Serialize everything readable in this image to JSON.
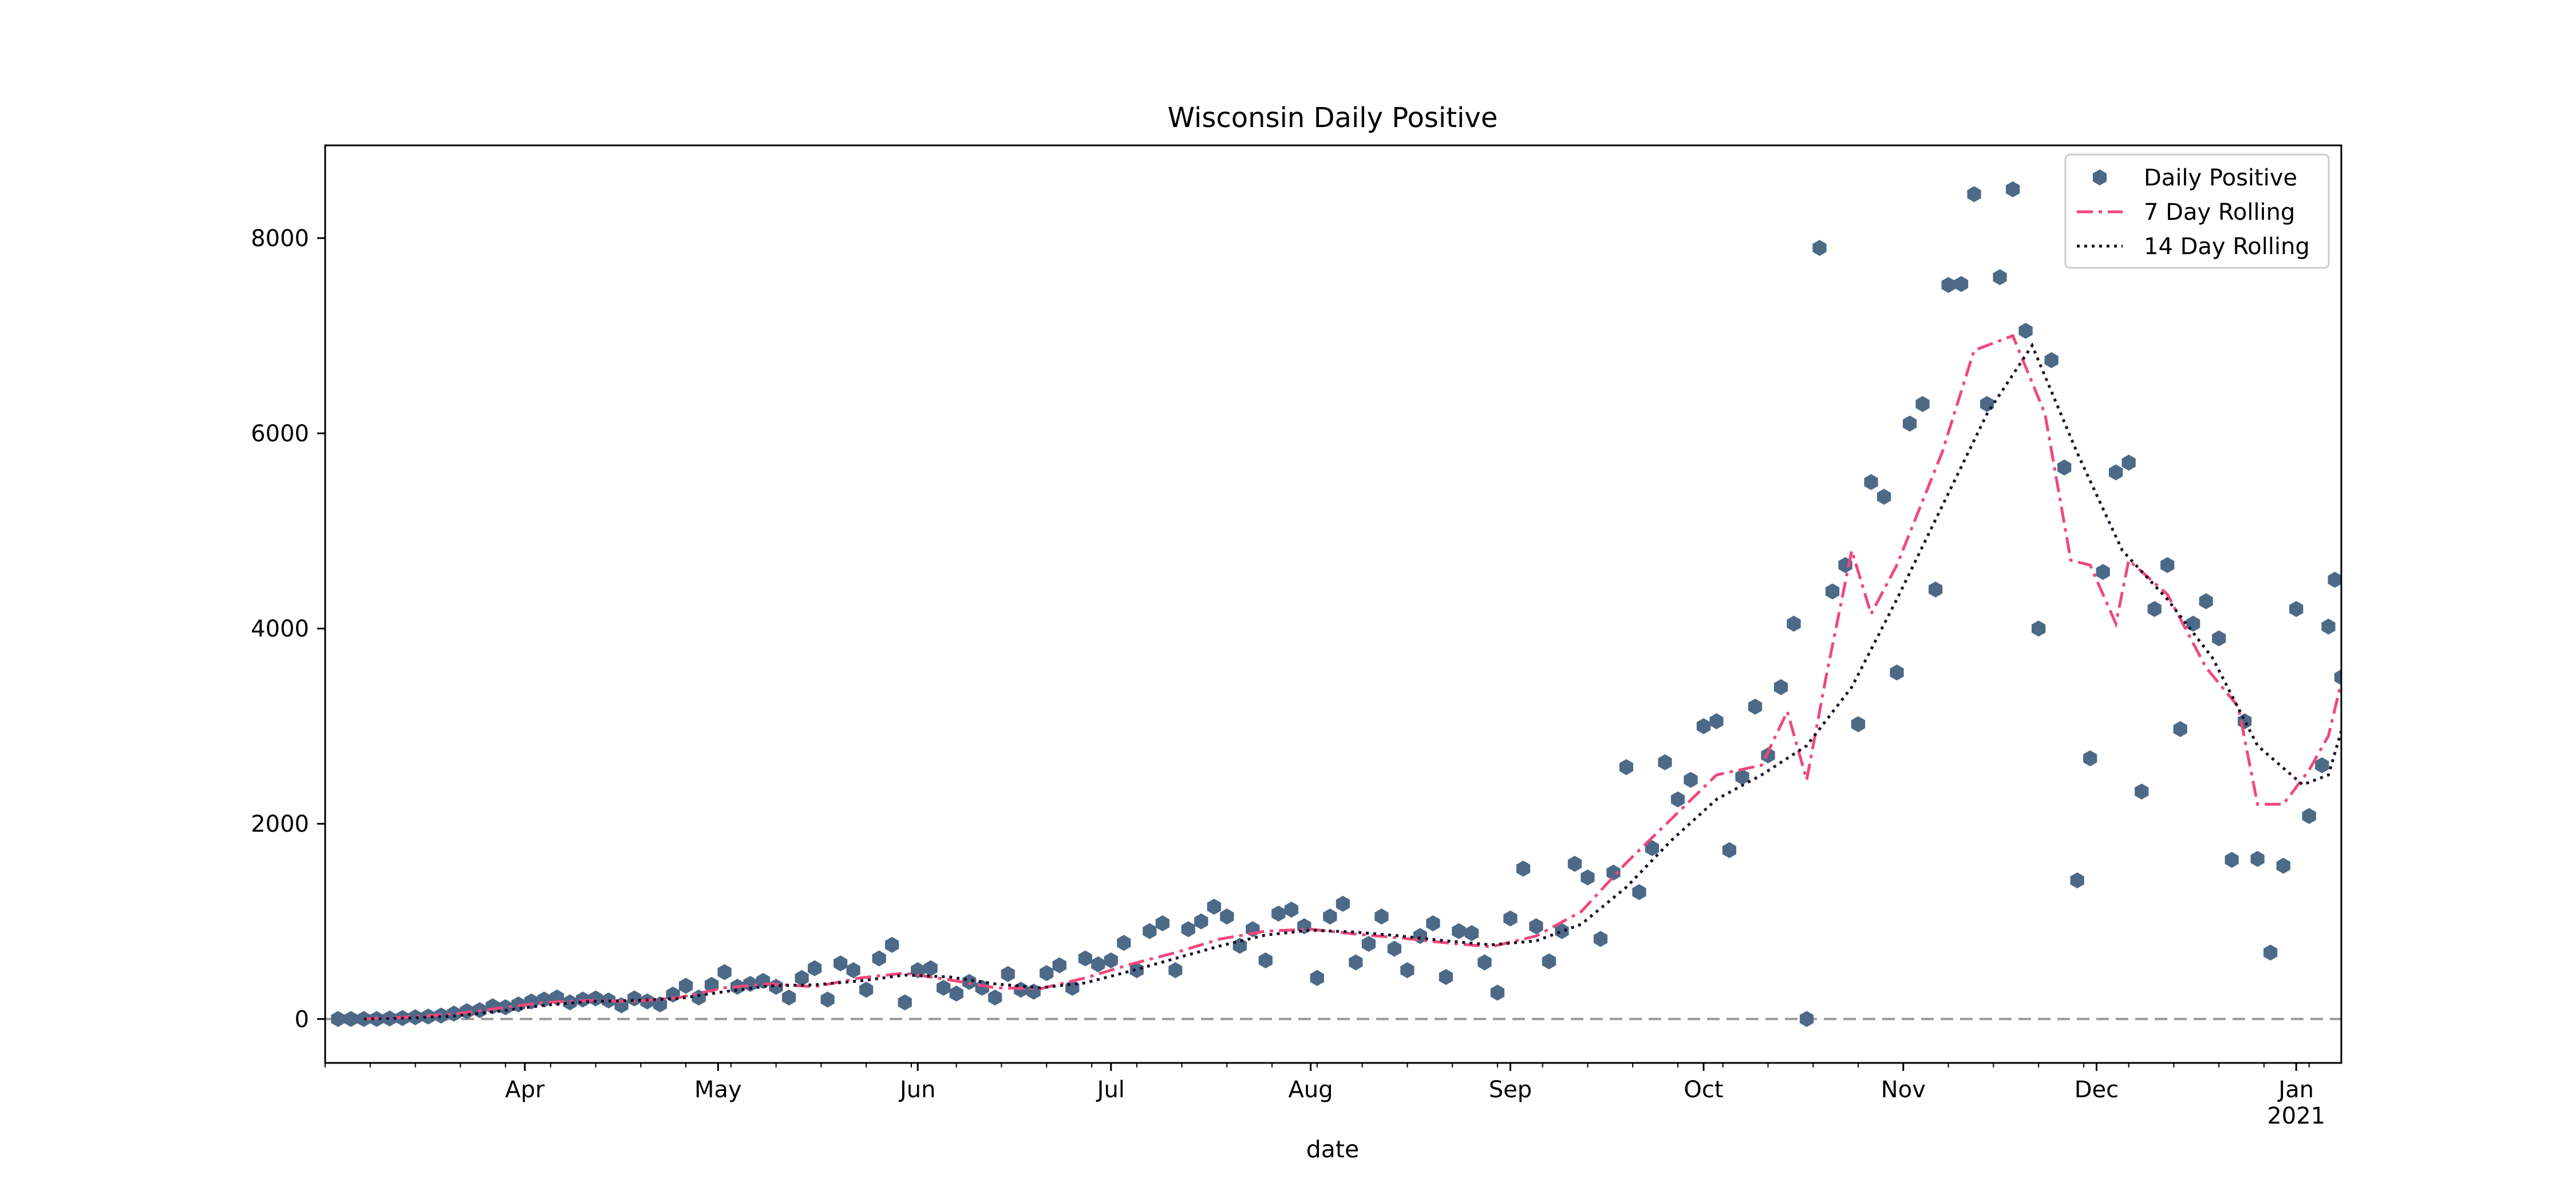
{
  "chart_data": {
    "type": "scatter",
    "title": "Wisconsin Daily Positive",
    "xlabel": "date",
    "ylabel": "",
    "xlim": [
      "2020-03-01",
      "2021-01-08"
    ],
    "ylim": [
      -450,
      8950
    ],
    "grid": false,
    "legend_position": "top-right",
    "x_ticks": [
      {
        "date": "2020-04-01",
        "label": "Apr",
        "sublabel": ""
      },
      {
        "date": "2020-05-01",
        "label": "May",
        "sublabel": ""
      },
      {
        "date": "2020-06-01",
        "label": "Jun",
        "sublabel": ""
      },
      {
        "date": "2020-07-01",
        "label": "Jul",
        "sublabel": ""
      },
      {
        "date": "2020-08-01",
        "label": "Aug",
        "sublabel": ""
      },
      {
        "date": "2020-09-01",
        "label": "Sep",
        "sublabel": ""
      },
      {
        "date": "2020-10-01",
        "label": "Oct",
        "sublabel": ""
      },
      {
        "date": "2020-11-01",
        "label": "Nov",
        "sublabel": ""
      },
      {
        "date": "2020-12-01",
        "label": "Dec",
        "sublabel": ""
      },
      {
        "date": "2021-01-01",
        "label": "Jan",
        "sublabel": "2021"
      }
    ],
    "y_ticks": [
      0,
      2000,
      4000,
      6000,
      8000
    ],
    "reference_line": {
      "y": 0,
      "style": "dashed",
      "color": "#999999"
    },
    "series": [
      {
        "name": "Daily Positive",
        "kind": "scatter",
        "marker": "hexagon",
        "color": "#4c6a88"
      },
      {
        "name": "7 Day Rolling",
        "kind": "line",
        "style": "dashdot",
        "color": "#f0487a"
      },
      {
        "name": "14 Day Rolling",
        "kind": "line",
        "style": "dotted",
        "color": "#1a1028"
      }
    ],
    "points": [
      {
        "x": "2020-03-03",
        "y": 0
      },
      {
        "x": "2020-03-05",
        "y": 0
      },
      {
        "x": "2020-03-07",
        "y": 0
      },
      {
        "x": "2020-03-09",
        "y": 0
      },
      {
        "x": "2020-03-11",
        "y": 5
      },
      {
        "x": "2020-03-13",
        "y": 10
      },
      {
        "x": "2020-03-15",
        "y": 18
      },
      {
        "x": "2020-03-17",
        "y": 25
      },
      {
        "x": "2020-03-19",
        "y": 35
      },
      {
        "x": "2020-03-21",
        "y": 55
      },
      {
        "x": "2020-03-23",
        "y": 80
      },
      {
        "x": "2020-03-25",
        "y": 90
      },
      {
        "x": "2020-03-27",
        "y": 130
      },
      {
        "x": "2020-03-29",
        "y": 120
      },
      {
        "x": "2020-03-31",
        "y": 150
      },
      {
        "x": "2020-04-02",
        "y": 180
      },
      {
        "x": "2020-04-04",
        "y": 200
      },
      {
        "x": "2020-04-06",
        "y": 220
      },
      {
        "x": "2020-04-08",
        "y": 170
      },
      {
        "x": "2020-04-10",
        "y": 200
      },
      {
        "x": "2020-04-12",
        "y": 210
      },
      {
        "x": "2020-04-14",
        "y": 190
      },
      {
        "x": "2020-04-16",
        "y": 140
      },
      {
        "x": "2020-04-18",
        "y": 210
      },
      {
        "x": "2020-04-20",
        "y": 180
      },
      {
        "x": "2020-04-22",
        "y": 150
      },
      {
        "x": "2020-04-24",
        "y": 250
      },
      {
        "x": "2020-04-26",
        "y": 340
      },
      {
        "x": "2020-04-28",
        "y": 220
      },
      {
        "x": "2020-04-30",
        "y": 350
      },
      {
        "x": "2020-05-02",
        "y": 480
      },
      {
        "x": "2020-05-04",
        "y": 330
      },
      {
        "x": "2020-05-06",
        "y": 360
      },
      {
        "x": "2020-05-08",
        "y": 390
      },
      {
        "x": "2020-05-10",
        "y": 330
      },
      {
        "x": "2020-05-12",
        "y": 220
      },
      {
        "x": "2020-05-14",
        "y": 420
      },
      {
        "x": "2020-05-16",
        "y": 520
      },
      {
        "x": "2020-05-18",
        "y": 200
      },
      {
        "x": "2020-05-20",
        "y": 570
      },
      {
        "x": "2020-05-22",
        "y": 500
      },
      {
        "x": "2020-05-24",
        "y": 300
      },
      {
        "x": "2020-05-26",
        "y": 620
      },
      {
        "x": "2020-05-28",
        "y": 760
      },
      {
        "x": "2020-05-30",
        "y": 170
      },
      {
        "x": "2020-06-01",
        "y": 500
      },
      {
        "x": "2020-06-03",
        "y": 520
      },
      {
        "x": "2020-06-05",
        "y": 320
      },
      {
        "x": "2020-06-07",
        "y": 260
      },
      {
        "x": "2020-06-09",
        "y": 380
      },
      {
        "x": "2020-06-11",
        "y": 320
      },
      {
        "x": "2020-06-13",
        "y": 220
      },
      {
        "x": "2020-06-15",
        "y": 460
      },
      {
        "x": "2020-06-17",
        "y": 300
      },
      {
        "x": "2020-06-19",
        "y": 280
      },
      {
        "x": "2020-06-21",
        "y": 470
      },
      {
        "x": "2020-06-23",
        "y": 550
      },
      {
        "x": "2020-06-25",
        "y": 320
      },
      {
        "x": "2020-06-27",
        "y": 620
      },
      {
        "x": "2020-06-29",
        "y": 560
      },
      {
        "x": "2020-07-01",
        "y": 600
      },
      {
        "x": "2020-07-03",
        "y": 780
      },
      {
        "x": "2020-07-05",
        "y": 500
      },
      {
        "x": "2020-07-07",
        "y": 900
      },
      {
        "x": "2020-07-09",
        "y": 980
      },
      {
        "x": "2020-07-11",
        "y": 500
      },
      {
        "x": "2020-07-13",
        "y": 920
      },
      {
        "x": "2020-07-15",
        "y": 1000
      },
      {
        "x": "2020-07-17",
        "y": 1150
      },
      {
        "x": "2020-07-19",
        "y": 1050
      },
      {
        "x": "2020-07-21",
        "y": 750
      },
      {
        "x": "2020-07-23",
        "y": 920
      },
      {
        "x": "2020-07-25",
        "y": 600
      },
      {
        "x": "2020-07-27",
        "y": 1080
      },
      {
        "x": "2020-07-29",
        "y": 1120
      },
      {
        "x": "2020-07-31",
        "y": 950
      },
      {
        "x": "2020-08-02",
        "y": 420
      },
      {
        "x": "2020-08-04",
        "y": 1050
      },
      {
        "x": "2020-08-06",
        "y": 1180
      },
      {
        "x": "2020-08-08",
        "y": 580
      },
      {
        "x": "2020-08-10",
        "y": 770
      },
      {
        "x": "2020-08-12",
        "y": 1050
      },
      {
        "x": "2020-08-14",
        "y": 720
      },
      {
        "x": "2020-08-16",
        "y": 500
      },
      {
        "x": "2020-08-18",
        "y": 850
      },
      {
        "x": "2020-08-20",
        "y": 980
      },
      {
        "x": "2020-08-22",
        "y": 430
      },
      {
        "x": "2020-08-24",
        "y": 900
      },
      {
        "x": "2020-08-26",
        "y": 880
      },
      {
        "x": "2020-08-28",
        "y": 580
      },
      {
        "x": "2020-08-30",
        "y": 270
      },
      {
        "x": "2020-09-01",
        "y": 1030
      },
      {
        "x": "2020-09-03",
        "y": 1540
      },
      {
        "x": "2020-09-05",
        "y": 950
      },
      {
        "x": "2020-09-07",
        "y": 590
      },
      {
        "x": "2020-09-09",
        "y": 900
      },
      {
        "x": "2020-09-11",
        "y": 1590
      },
      {
        "x": "2020-09-13",
        "y": 1450
      },
      {
        "x": "2020-09-15",
        "y": 820
      },
      {
        "x": "2020-09-17",
        "y": 1500
      },
      {
        "x": "2020-09-19",
        "y": 2580
      },
      {
        "x": "2020-09-21",
        "y": 1300
      },
      {
        "x": "2020-09-23",
        "y": 1750
      },
      {
        "x": "2020-09-25",
        "y": 2630
      },
      {
        "x": "2020-09-27",
        "y": 2250
      },
      {
        "x": "2020-09-29",
        "y": 2450
      },
      {
        "x": "2020-10-01",
        "y": 3000
      },
      {
        "x": "2020-10-03",
        "y": 3050
      },
      {
        "x": "2020-10-05",
        "y": 1730
      },
      {
        "x": "2020-10-07",
        "y": 2480
      },
      {
        "x": "2020-10-09",
        "y": 3200
      },
      {
        "x": "2020-10-11",
        "y": 2700
      },
      {
        "x": "2020-10-13",
        "y": 3400
      },
      {
        "x": "2020-10-15",
        "y": 4050
      },
      {
        "x": "2020-10-17",
        "y": 0
      },
      {
        "x": "2020-10-19",
        "y": 7900
      },
      {
        "x": "2020-10-21",
        "y": 4380
      },
      {
        "x": "2020-10-23",
        "y": 4650
      },
      {
        "x": "2020-10-25",
        "y": 3020
      },
      {
        "x": "2020-10-27",
        "y": 5500
      },
      {
        "x": "2020-10-29",
        "y": 5350
      },
      {
        "x": "2020-10-31",
        "y": 3550
      },
      {
        "x": "2020-11-02",
        "y": 6100
      },
      {
        "x": "2020-11-04",
        "y": 6300
      },
      {
        "x": "2020-11-06",
        "y": 4400
      },
      {
        "x": "2020-11-08",
        "y": 7520
      },
      {
        "x": "2020-11-10",
        "y": 7530
      },
      {
        "x": "2020-11-12",
        "y": 8450
      },
      {
        "x": "2020-11-14",
        "y": 6300
      },
      {
        "x": "2020-11-16",
        "y": 7600
      },
      {
        "x": "2020-11-18",
        "y": 8500
      },
      {
        "x": "2020-11-20",
        "y": 7050
      },
      {
        "x": "2020-11-22",
        "y": 4000
      },
      {
        "x": "2020-11-24",
        "y": 6750
      },
      {
        "x": "2020-11-26",
        "y": 5650
      },
      {
        "x": "2020-11-28",
        "y": 1420
      },
      {
        "x": "2020-11-30",
        "y": 2670
      },
      {
        "x": "2020-12-02",
        "y": 4580
      },
      {
        "x": "2020-12-04",
        "y": 5600
      },
      {
        "x": "2020-12-06",
        "y": 5700
      },
      {
        "x": "2020-12-08",
        "y": 2330
      },
      {
        "x": "2020-12-10",
        "y": 4200
      },
      {
        "x": "2020-12-12",
        "y": 4650
      },
      {
        "x": "2020-12-14",
        "y": 2970
      },
      {
        "x": "2020-12-16",
        "y": 4050
      },
      {
        "x": "2020-12-18",
        "y": 4280
      },
      {
        "x": "2020-12-20",
        "y": 3900
      },
      {
        "x": "2020-12-22",
        "y": 1630
      },
      {
        "x": "2020-12-24",
        "y": 3050
      },
      {
        "x": "2020-12-26",
        "y": 1640
      },
      {
        "x": "2020-12-28",
        "y": 680
      },
      {
        "x": "2020-12-30",
        "y": 1570
      },
      {
        "x": "2021-01-01",
        "y": 4200
      },
      {
        "x": "2021-01-03",
        "y": 2080
      },
      {
        "x": "2021-01-05",
        "y": 2600
      },
      {
        "x": "2021-01-06",
        "y": 4020
      },
      {
        "x": "2021-01-07",
        "y": 4500
      },
      {
        "x": "2021-01-08",
        "y": 3500
      }
    ],
    "rolling_7": [
      {
        "x": "2020-03-07",
        "y": 0
      },
      {
        "x": "2020-03-14",
        "y": 20
      },
      {
        "x": "2020-03-21",
        "y": 50
      },
      {
        "x": "2020-03-28",
        "y": 110
      },
      {
        "x": "2020-04-04",
        "y": 170
      },
      {
        "x": "2020-04-11",
        "y": 190
      },
      {
        "x": "2020-04-18",
        "y": 180
      },
      {
        "x": "2020-04-25",
        "y": 220
      },
      {
        "x": "2020-05-02",
        "y": 320
      },
      {
        "x": "2020-05-09",
        "y": 360
      },
      {
        "x": "2020-05-16",
        "y": 330
      },
      {
        "x": "2020-05-23",
        "y": 420
      },
      {
        "x": "2020-05-30",
        "y": 470
      },
      {
        "x": "2020-06-06",
        "y": 400
      },
      {
        "x": "2020-06-13",
        "y": 320
      },
      {
        "x": "2020-06-20",
        "y": 310
      },
      {
        "x": "2020-06-27",
        "y": 420
      },
      {
        "x": "2020-07-04",
        "y": 560
      },
      {
        "x": "2020-07-11",
        "y": 680
      },
      {
        "x": "2020-07-18",
        "y": 820
      },
      {
        "x": "2020-07-25",
        "y": 900
      },
      {
        "x": "2020-08-01",
        "y": 920
      },
      {
        "x": "2020-08-08",
        "y": 870
      },
      {
        "x": "2020-08-15",
        "y": 830
      },
      {
        "x": "2020-08-22",
        "y": 780
      },
      {
        "x": "2020-08-29",
        "y": 740
      },
      {
        "x": "2020-09-05",
        "y": 850
      },
      {
        "x": "2020-09-12",
        "y": 1100
      },
      {
        "x": "2020-09-19",
        "y": 1600
      },
      {
        "x": "2020-09-26",
        "y": 2050
      },
      {
        "x": "2020-10-03",
        "y": 2500
      },
      {
        "x": "2020-10-10",
        "y": 2600
      },
      {
        "x": "2020-10-14",
        "y": 3150
      },
      {
        "x": "2020-10-17",
        "y": 2450
      },
      {
        "x": "2020-10-20",
        "y": 3500
      },
      {
        "x": "2020-10-24",
        "y": 4800
      },
      {
        "x": "2020-10-27",
        "y": 4150
      },
      {
        "x": "2020-10-31",
        "y": 4650
      },
      {
        "x": "2020-11-07",
        "y": 5800
      },
      {
        "x": "2020-11-12",
        "y": 6850
      },
      {
        "x": "2020-11-16",
        "y": 6950
      },
      {
        "x": "2020-11-18",
        "y": 7000
      },
      {
        "x": "2020-11-23",
        "y": 6200
      },
      {
        "x": "2020-11-27",
        "y": 4700
      },
      {
        "x": "2020-11-30",
        "y": 4650
      },
      {
        "x": "2020-12-04",
        "y": 4050
      },
      {
        "x": "2020-12-06",
        "y": 4700
      },
      {
        "x": "2020-12-12",
        "y": 4350
      },
      {
        "x": "2020-12-18",
        "y": 3600
      },
      {
        "x": "2020-12-23",
        "y": 3200
      },
      {
        "x": "2020-12-26",
        "y": 2200
      },
      {
        "x": "2020-12-30",
        "y": 2200
      },
      {
        "x": "2021-01-03",
        "y": 2550
      },
      {
        "x": "2021-01-06",
        "y": 2900
      },
      {
        "x": "2021-01-08",
        "y": 3450
      }
    ],
    "rolling_14": [
      {
        "x": "2020-03-07",
        "y": 0
      },
      {
        "x": "2020-03-14",
        "y": 10
      },
      {
        "x": "2020-03-21",
        "y": 30
      },
      {
        "x": "2020-03-28",
        "y": 80
      },
      {
        "x": "2020-04-04",
        "y": 140
      },
      {
        "x": "2020-04-11",
        "y": 180
      },
      {
        "x": "2020-04-18",
        "y": 190
      },
      {
        "x": "2020-04-25",
        "y": 210
      },
      {
        "x": "2020-05-02",
        "y": 280
      },
      {
        "x": "2020-05-09",
        "y": 340
      },
      {
        "x": "2020-05-16",
        "y": 350
      },
      {
        "x": "2020-05-23",
        "y": 390
      },
      {
        "x": "2020-05-30",
        "y": 450
      },
      {
        "x": "2020-06-06",
        "y": 430
      },
      {
        "x": "2020-06-13",
        "y": 360
      },
      {
        "x": "2020-06-20",
        "y": 320
      },
      {
        "x": "2020-06-27",
        "y": 370
      },
      {
        "x": "2020-07-04",
        "y": 490
      },
      {
        "x": "2020-07-11",
        "y": 620
      },
      {
        "x": "2020-07-18",
        "y": 750
      },
      {
        "x": "2020-07-25",
        "y": 860
      },
      {
        "x": "2020-08-01",
        "y": 910
      },
      {
        "x": "2020-08-08",
        "y": 890
      },
      {
        "x": "2020-08-15",
        "y": 850
      },
      {
        "x": "2020-08-22",
        "y": 800
      },
      {
        "x": "2020-08-29",
        "y": 760
      },
      {
        "x": "2020-09-05",
        "y": 800
      },
      {
        "x": "2020-09-12",
        "y": 970
      },
      {
        "x": "2020-09-19",
        "y": 1350
      },
      {
        "x": "2020-09-26",
        "y": 1830
      },
      {
        "x": "2020-10-03",
        "y": 2250
      },
      {
        "x": "2020-10-10",
        "y": 2500
      },
      {
        "x": "2020-10-17",
        "y": 2800
      },
      {
        "x": "2020-10-24",
        "y": 3400
      },
      {
        "x": "2020-10-31",
        "y": 4300
      },
      {
        "x": "2020-11-07",
        "y": 5250
      },
      {
        "x": "2020-11-14",
        "y": 6200
      },
      {
        "x": "2020-11-21",
        "y": 6900
      },
      {
        "x": "2020-11-28",
        "y": 5800
      },
      {
        "x": "2020-12-05",
        "y": 4800
      },
      {
        "x": "2020-12-12",
        "y": 4300
      },
      {
        "x": "2020-12-19",
        "y": 3700
      },
      {
        "x": "2020-12-26",
        "y": 2800
      },
      {
        "x": "2021-01-02",
        "y": 2400
      },
      {
        "x": "2021-01-06",
        "y": 2500
      },
      {
        "x": "2021-01-08",
        "y": 2950
      }
    ]
  }
}
